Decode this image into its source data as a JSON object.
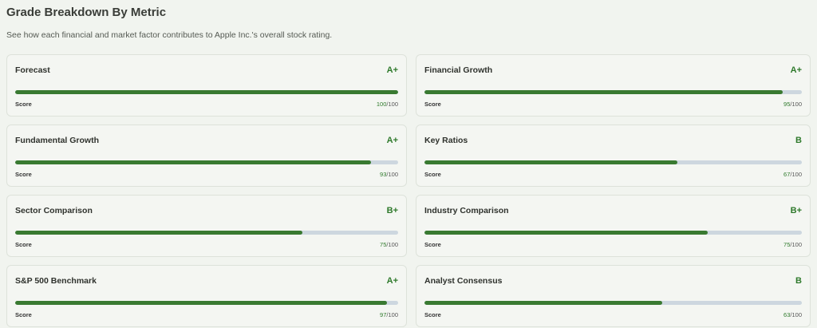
{
  "header": {
    "title": "Grade Breakdown By Metric",
    "subtitle": "See how each financial and market factor contributes to Apple Inc.'s overall stock rating."
  },
  "score_caption": "Score",
  "score_range": [
    0,
    100
  ],
  "metrics": [
    {
      "name": "Forecast",
      "grade": "A+",
      "score": 100,
      "out_of": "/100"
    },
    {
      "name": "Financial Growth",
      "grade": "A+",
      "score": 95,
      "out_of": "/100"
    },
    {
      "name": "Fundamental Growth",
      "grade": "A+",
      "score": 93,
      "out_of": "/100"
    },
    {
      "name": "Key Ratios",
      "grade": "B",
      "score": 67,
      "out_of": "/100"
    },
    {
      "name": "Sector Comparison",
      "grade": "B+",
      "score": 75,
      "out_of": "/100"
    },
    {
      "name": "Industry Comparison",
      "grade": "B+",
      "score": 75,
      "out_of": "/100"
    },
    {
      "name": "S&P 500 Benchmark",
      "grade": "A+",
      "score": 97,
      "out_of": "/100"
    },
    {
      "name": "Analyst Consensus",
      "grade": "B",
      "score": 63,
      "out_of": "/100"
    }
  ]
}
